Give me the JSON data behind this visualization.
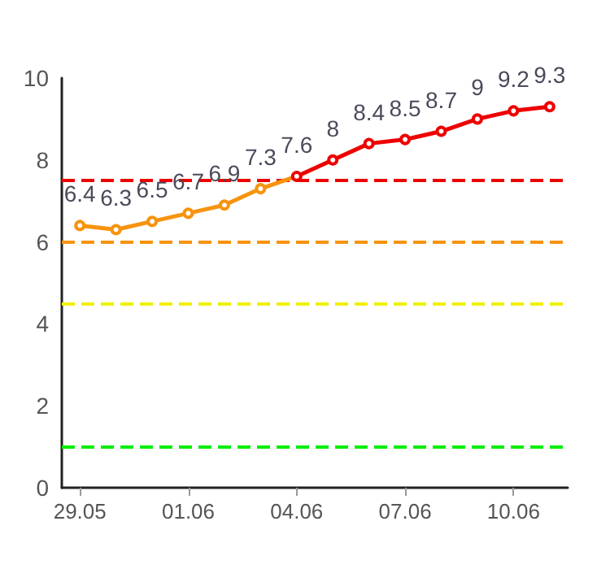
{
  "chart_data": {
    "type": "line",
    "categories": [
      "29.05",
      null,
      null,
      "01.06",
      null,
      null,
      "04.06",
      null,
      null,
      "07.06",
      null,
      null,
      "10.06",
      null
    ],
    "series": [
      {
        "colors": [
          "#f7930f",
          "#f7930f",
          "#f7930f",
          "#f7930f",
          "#f7930f",
          "#f7930f",
          "#ee0000",
          "#ee0000",
          "#ee0000",
          "#ee0000",
          "#ee0000",
          "#ee0000",
          "#ee0000",
          "#ee0000"
        ],
        "values": [
          6.4,
          6.3,
          6.5,
          6.7,
          6.9,
          7.3,
          7.6,
          8,
          8.4,
          8.5,
          8.7,
          9,
          9.2,
          9.3
        ]
      }
    ],
    "ylim": [
      0,
      10
    ],
    "yticks": [
      0,
      2,
      4,
      6,
      8,
      10
    ],
    "grid": false,
    "marker": "circle",
    "line_style": "solid",
    "data_labels": true,
    "ref_lines": [
      {
        "axis": "y",
        "value": 7.5,
        "color": "#ee0000",
        "line_style": "dashed"
      },
      {
        "axis": "y",
        "value": 6,
        "color": "#f7930f",
        "line_style": "dashed"
      },
      {
        "axis": "y",
        "value": 4.5,
        "color": "#f0f000",
        "line_style": "dashed"
      },
      {
        "axis": "y",
        "value": 1,
        "color": "#00ee00",
        "line_style": "dashed"
      }
    ]
  }
}
